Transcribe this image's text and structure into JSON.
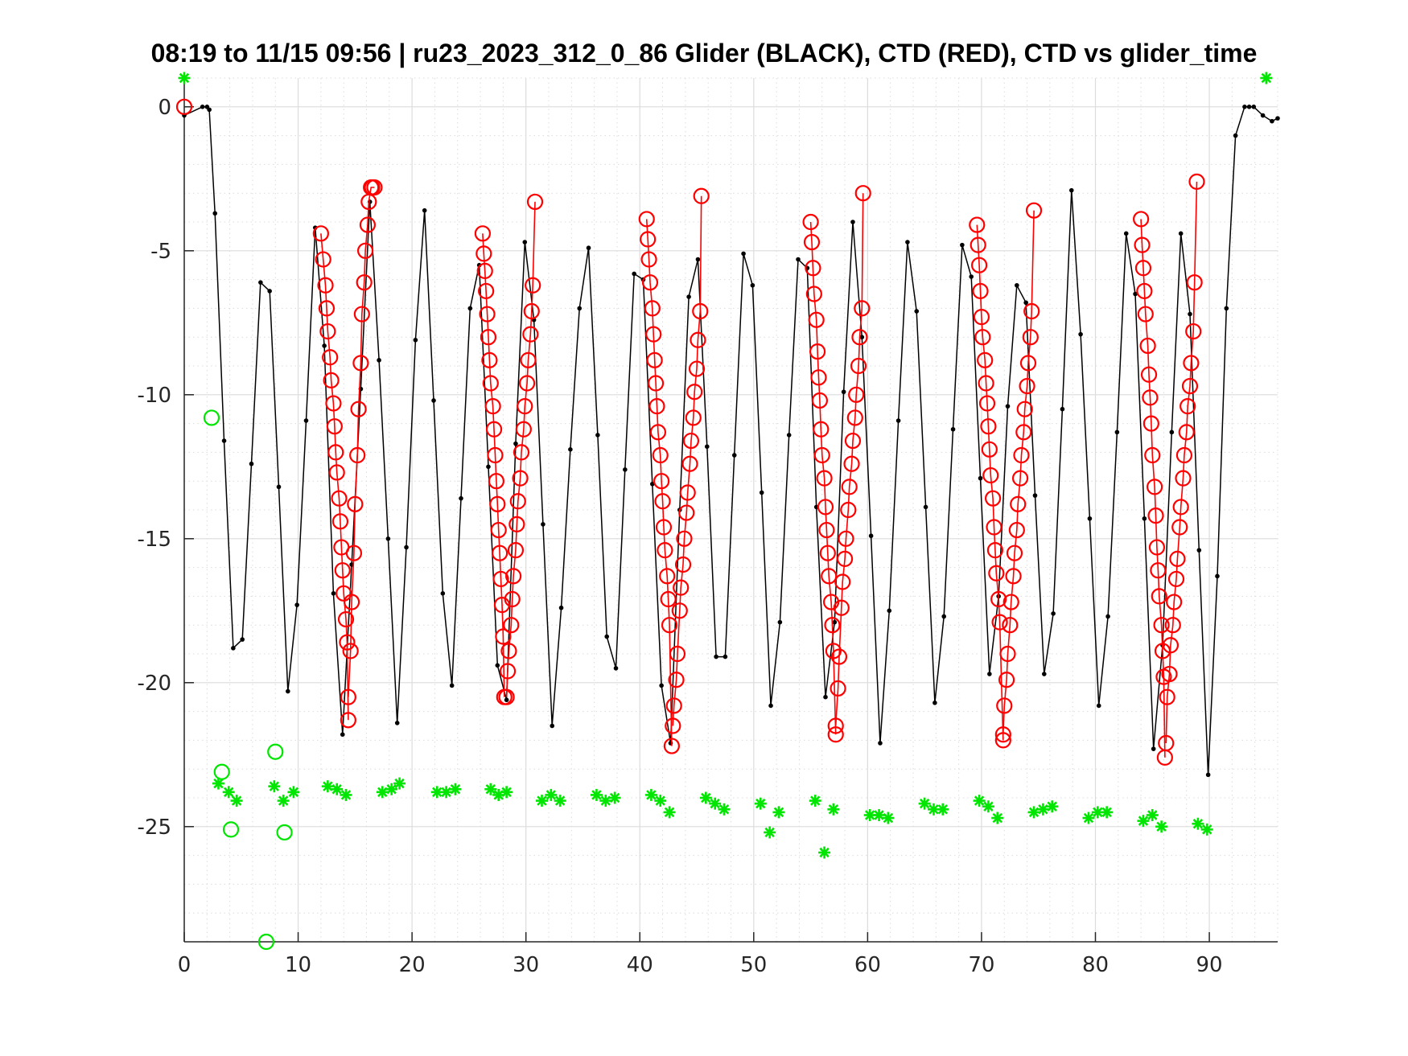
{
  "chart_data": {
    "type": "scatter",
    "title": "08:19 to 11/15 09:56 | ru23_2023_312_0_86 Glider (BLACK), CTD (RED), CTD vs glider_time",
    "xlabel": "",
    "ylabel": "",
    "xlim": [
      0,
      96
    ],
    "ylim": [
      -29,
      1
    ],
    "x_ticks": [
      0,
      10,
      20,
      30,
      40,
      50,
      60,
      70,
      80,
      90
    ],
    "x_tick_labels": [
      "0",
      "10",
      "20",
      "30",
      "40",
      "50",
      "60",
      "70",
      "80",
      "90"
    ],
    "y_ticks": [
      0,
      -5,
      -10,
      -15,
      -20,
      -25
    ],
    "y_tick_labels": [
      "0",
      "-5",
      "-10",
      "-15",
      "-20",
      "-25"
    ],
    "grid": "major and minor",
    "colors": {
      "glider": "#000000",
      "ctd": "#ff0000",
      "green": "#00e600",
      "grid": "#dcdcdc",
      "axis": "#262626"
    },
    "series": [
      {
        "label": "Glider",
        "style": "black line with dot markers",
        "x": [
          0.0,
          1.6,
          2.0,
          2.2,
          2.7,
          3.5,
          4.3,
          5.1,
          5.9,
          6.7,
          7.5,
          8.3,
          9.1,
          9.9,
          10.7,
          11.5,
          12.3,
          13.1,
          13.9,
          14.7,
          15.5,
          16.3,
          17.1,
          17.9,
          18.7,
          19.5,
          20.3,
          21.1,
          21.9,
          22.7,
          23.5,
          24.3,
          25.1,
          25.9,
          26.7,
          27.5,
          28.3,
          29.1,
          29.9,
          30.7,
          31.5,
          32.3,
          33.1,
          33.9,
          34.7,
          35.5,
          36.3,
          37.1,
          37.9,
          38.7,
          39.5,
          40.3,
          41.1,
          41.9,
          42.7,
          43.5,
          44.3,
          45.1,
          45.9,
          46.7,
          47.5,
          48.3,
          49.1,
          49.9,
          50.7,
          51.5,
          52.3,
          53.1,
          53.9,
          54.7,
          55.5,
          56.3,
          57.1,
          57.9,
          58.7,
          59.5,
          60.3,
          61.1,
          61.9,
          62.7,
          63.5,
          64.3,
          65.1,
          65.9,
          66.7,
          67.5,
          68.3,
          69.1,
          69.9,
          70.7,
          71.5,
          72.3,
          73.1,
          73.9,
          74.7,
          75.5,
          76.3,
          77.1,
          77.9,
          78.7,
          79.5,
          80.3,
          81.1,
          81.9,
          82.7,
          83.5,
          84.3,
          85.1,
          85.9,
          86.7,
          87.5,
          88.3,
          89.1,
          89.9,
          90.7,
          91.5,
          92.3,
          93.1,
          93.5,
          93.9,
          94.7,
          95.5,
          96.0
        ],
        "y": [
          -0.3,
          0.0,
          0.0,
          -0.1,
          -3.7,
          -11.6,
          -18.8,
          -18.5,
          -12.4,
          -6.1,
          -6.4,
          -13.2,
          -20.3,
          -17.3,
          -10.9,
          -4.2,
          -8.3,
          -16.9,
          -21.8,
          -15.9,
          -9.8,
          -3.3,
          -8.8,
          -15.0,
          -21.4,
          -15.3,
          -8.1,
          -3.6,
          -10.2,
          -16.9,
          -20.1,
          -13.6,
          -7.0,
          -5.5,
          -12.5,
          -19.4,
          -20.6,
          -11.7,
          -4.7,
          -7.4,
          -14.5,
          -21.5,
          -17.4,
          -11.9,
          -7.0,
          -4.9,
          -11.4,
          -18.4,
          -19.5,
          -12.6,
          -5.8,
          -6.0,
          -13.1,
          -20.1,
          -22.1,
          -14.0,
          -6.6,
          -5.3,
          -11.8,
          -19.1,
          -19.1,
          -12.1,
          -5.1,
          -6.2,
          -13.4,
          -20.8,
          -17.9,
          -11.4,
          -5.3,
          -5.6,
          -13.9,
          -20.5,
          -17.9,
          -9.9,
          -4.0,
          -8.0,
          -14.9,
          -22.1,
          -17.5,
          -10.9,
          -4.7,
          -7.1,
          -13.9,
          -20.7,
          -17.7,
          -11.2,
          -4.8,
          -5.9,
          -12.9,
          -19.7,
          -17.0,
          -10.4,
          -6.2,
          -6.8,
          -13.5,
          -19.7,
          -17.6,
          -10.5,
          -2.9,
          -7.9,
          -14.3,
          -20.8,
          -17.7,
          -11.3,
          -4.4,
          -6.5,
          -14.3,
          -22.3,
          -18.7,
          -11.3,
          -4.4,
          -7.2,
          -15.4,
          -23.2,
          -16.3,
          -7.0,
          -1.0,
          0.0,
          0.0,
          0.0,
          -0.3,
          -0.5,
          -0.4
        ]
      },
      {
        "label": "CTD",
        "style": "red line with open circle markers",
        "casts": [
          {
            "x": [
              0.0
            ],
            "y": [
              0.0
            ]
          },
          {
            "x": [
              12.0,
              12.2,
              12.4,
              12.5,
              12.6,
              12.8,
              12.9,
              13.1,
              13.2,
              13.3,
              13.4,
              13.6,
              13.7,
              13.8,
              13.9,
              14.0,
              14.2,
              14.3,
              14.4
            ],
            "y": [
              -4.4,
              -5.3,
              -6.2,
              -7.0,
              -7.8,
              -8.7,
              -9.5,
              -10.3,
              -11.1,
              -12.0,
              -12.7,
              -13.6,
              -14.4,
              -15.3,
              -16.1,
              -16.9,
              -17.8,
              -18.6,
              -21.3
            ]
          },
          {
            "x": [
              14.4,
              14.6,
              14.7,
              14.9,
              15.0,
              15.2,
              15.3,
              15.5,
              15.6,
              15.8,
              15.9,
              16.1,
              16.2,
              16.4,
              16.5,
              16.7
            ],
            "y": [
              -20.5,
              -18.9,
              -17.2,
              -15.5,
              -13.8,
              -12.1,
              -10.5,
              -8.9,
              -7.2,
              -6.1,
              -5.0,
              -4.1,
              -3.3,
              -2.8,
              -2.8,
              -2.8
            ]
          },
          {
            "x": [
              26.2,
              26.3,
              26.4,
              26.5,
              26.6,
              26.7,
              26.8,
              26.9,
              27.1,
              27.2,
              27.3,
              27.4,
              27.5,
              27.6,
              27.7,
              27.8,
              27.9,
              28.0,
              28.1
            ],
            "y": [
              -4.4,
              -5.1,
              -5.7,
              -6.4,
              -7.2,
              -8.0,
              -8.8,
              -9.6,
              -10.4,
              -11.2,
              -12.1,
              -13.0,
              -13.8,
              -14.7,
              -15.5,
              -16.4,
              -17.3,
              -18.4,
              -20.5
            ]
          },
          {
            "x": [
              28.3,
              28.4,
              28.5,
              28.7,
              28.8,
              28.9,
              29.1,
              29.2,
              29.3,
              29.5,
              29.6,
              29.8,
              29.9,
              30.1,
              30.2,
              30.4,
              30.5,
              30.6,
              30.8
            ],
            "y": [
              -20.5,
              -19.6,
              -18.9,
              -18.0,
              -17.1,
              -16.3,
              -15.4,
              -14.5,
              -13.7,
              -12.9,
              -12.0,
              -11.2,
              -10.4,
              -9.6,
              -8.8,
              -7.9,
              -7.1,
              -6.2,
              -3.3
            ]
          },
          {
            "x": [
              40.6,
              40.7,
              40.8,
              40.9,
              41.1,
              41.2,
              41.3,
              41.4,
              41.5,
              41.6,
              41.8,
              41.9,
              42.0,
              42.1,
              42.2,
              42.4,
              42.5,
              42.6,
              42.8
            ],
            "y": [
              -3.9,
              -4.6,
              -5.3,
              -6.1,
              -7.0,
              -7.9,
              -8.8,
              -9.6,
              -10.4,
              -11.3,
              -12.1,
              -13.0,
              -13.7,
              -14.6,
              -15.4,
              -16.3,
              -17.1,
              -18.0,
              -22.2
            ]
          },
          {
            "x": [
              42.9,
              43.0,
              43.2,
              43.3,
              43.5,
              43.6,
              43.8,
              43.9,
              44.1,
              44.2,
              44.4,
              44.5,
              44.7,
              44.8,
              45.0,
              45.1,
              45.3,
              45.4
            ],
            "y": [
              -21.5,
              -20.8,
              -19.9,
              -19.0,
              -17.5,
              -16.7,
              -15.9,
              -15.0,
              -14.1,
              -13.4,
              -12.4,
              -11.6,
              -10.8,
              -9.9,
              -9.1,
              -8.1,
              -7.1,
              -3.1
            ]
          },
          {
            "x": [
              55.0,
              55.1,
              55.2,
              55.3,
              55.5,
              55.6,
              55.7,
              55.8,
              55.9,
              56.0,
              56.2,
              56.3,
              56.4,
              56.5,
              56.6,
              56.8,
              56.9,
              57.0,
              57.2
            ],
            "y": [
              -4.0,
              -4.7,
              -5.6,
              -6.5,
              -7.4,
              -8.5,
              -9.4,
              -10.2,
              -11.2,
              -12.1,
              -12.9,
              -13.9,
              -14.7,
              -15.5,
              -16.3,
              -17.2,
              -18.0,
              -18.9,
              -21.8
            ]
          },
          {
            "x": [
              57.2,
              57.4,
              57.5,
              57.7,
              57.8,
              58.0,
              58.1,
              58.3,
              58.4,
              58.6,
              58.7,
              58.9,
              59.0,
              59.2,
              59.3,
              59.5,
              59.6
            ],
            "y": [
              -21.5,
              -20.2,
              -19.1,
              -17.4,
              -16.5,
              -15.7,
              -15.0,
              -14.0,
              -13.2,
              -12.4,
              -11.6,
              -10.8,
              -10.0,
              -9.0,
              -8.0,
              -7.0,
              -3.0
            ]
          },
          {
            "x": [
              69.6,
              69.7,
              69.8,
              69.9,
              70.0,
              70.1,
              70.3,
              70.4,
              70.5,
              70.6,
              70.7,
              70.8,
              71.0,
              71.1,
              71.2,
              71.3,
              71.5,
              71.6,
              71.9
            ],
            "y": [
              -4.1,
              -4.8,
              -5.5,
              -6.4,
              -7.3,
              -8.0,
              -8.8,
              -9.6,
              -10.3,
              -11.1,
              -11.9,
              -12.8,
              -13.6,
              -14.6,
              -15.4,
              -16.2,
              -17.1,
              -17.9,
              -22.0
            ]
          },
          {
            "x": [
              71.9,
              72.0,
              72.2,
              72.3,
              72.5,
              72.6,
              72.8,
              72.9,
              73.1,
              73.2,
              73.4,
              73.5,
              73.7,
              73.8,
              74.0,
              74.1,
              74.3,
              74.4,
              74.6
            ],
            "y": [
              -21.8,
              -20.8,
              -19.9,
              -19.0,
              -18.0,
              -17.2,
              -16.3,
              -15.5,
              -14.7,
              -13.8,
              -12.9,
              -12.1,
              -11.3,
              -10.5,
              -9.7,
              -8.9,
              -8.0,
              -7.1,
              -3.6
            ]
          },
          {
            "x": [
              84.0,
              84.1,
              84.2,
              84.3,
              84.4,
              84.6,
              84.7,
              84.8,
              84.9,
              85.0,
              85.2,
              85.3,
              85.4,
              85.5,
              85.6,
              85.8,
              85.9,
              86.0,
              86.1
            ],
            "y": [
              -3.9,
              -4.8,
              -5.6,
              -6.4,
              -7.2,
              -8.3,
              -9.3,
              -10.1,
              -11.0,
              -12.1,
              -13.2,
              -14.2,
              -15.3,
              -16.1,
              -17.0,
              -18.0,
              -18.9,
              -19.8,
              -22.6
            ]
          },
          {
            "x": [
              86.2,
              86.3,
              86.5,
              86.6,
              86.8,
              86.9,
              87.1,
              87.2,
              87.4,
              87.5,
              87.7,
              87.8,
              88.0,
              88.1,
              88.3,
              88.4,
              88.6,
              88.7,
              88.9
            ],
            "y": [
              -22.1,
              -20.5,
              -19.7,
              -18.7,
              -18.0,
              -17.2,
              -16.4,
              -15.7,
              -14.6,
              -13.9,
              -12.9,
              -12.1,
              -11.3,
              -10.4,
              -9.7,
              -8.9,
              -7.8,
              -6.1,
              -2.6
            ]
          }
        ]
      },
      {
        "label": "CTD vs glider_time (stars)",
        "style": "green asterisks",
        "x": [
          0.0,
          95.0,
          3.0,
          3.9,
          4.6,
          7.9,
          8.7,
          9.6,
          12.6,
          13.4,
          14.2,
          17.4,
          18.2,
          18.9,
          22.2,
          23.0,
          23.8,
          26.9,
          27.6,
          28.3,
          31.4,
          32.2,
          33.0,
          36.2,
          37.0,
          37.8,
          41.0,
          41.8,
          42.6,
          45.8,
          46.6,
          47.4,
          50.6,
          51.4,
          52.2,
          55.4,
          56.2,
          57.0,
          60.2,
          61.0,
          61.8,
          65.0,
          65.8,
          66.6,
          69.8,
          70.6,
          71.4,
          74.6,
          75.4,
          76.2,
          79.4,
          80.2,
          81.0,
          84.2,
          85.0,
          85.8,
          89.0,
          89.8
        ],
        "y": [
          1.0,
          1.0,
          -23.5,
          -23.8,
          -24.1,
          -23.6,
          -24.1,
          -23.8,
          -23.6,
          -23.7,
          -23.9,
          -23.8,
          -23.7,
          -23.5,
          -23.8,
          -23.8,
          -23.7,
          -23.7,
          -23.9,
          -23.8,
          -24.1,
          -23.9,
          -24.1,
          -23.9,
          -24.1,
          -24.0,
          -23.9,
          -24.1,
          -24.5,
          -24.0,
          -24.2,
          -24.4,
          -24.2,
          -25.2,
          -24.5,
          -24.1,
          -25.9,
          -24.4,
          -24.6,
          -24.6,
          -24.7,
          -24.2,
          -24.4,
          -24.4,
          -24.1,
          -24.3,
          -24.7,
          -24.5,
          -24.4,
          -24.3,
          -24.7,
          -24.5,
          -24.5,
          -24.8,
          -24.6,
          -25.0,
          -24.9,
          -25.1
        ]
      },
      {
        "label": "CTD vs glider_time (circles)",
        "style": "green open circles",
        "x": [
          2.4,
          3.3,
          4.1,
          7.2,
          8.0,
          8.8
        ],
        "y": [
          -10.8,
          -23.1,
          -25.1,
          -29.0,
          -22.4,
          -25.2
        ]
      }
    ]
  }
}
